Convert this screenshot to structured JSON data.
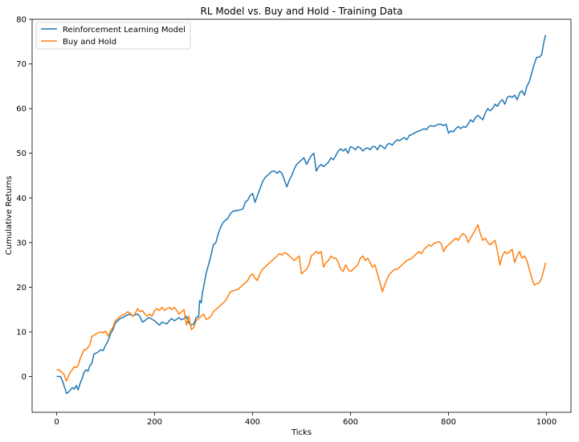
{
  "chart_data": {
    "type": "line",
    "title": "RL Model vs. Buy and Hold - Training Data",
    "xlabel": "Ticks",
    "ylabel": "Cumulative Returns",
    "xlim": [
      -50,
      1050
    ],
    "ylim": [
      -8,
      80
    ],
    "x_ticks": [
      0,
      200,
      400,
      600,
      800,
      1000
    ],
    "y_ticks": [
      0,
      10,
      20,
      30,
      40,
      50,
      60,
      70,
      80
    ],
    "x_tick_labels": [
      "0",
      "200",
      "400",
      "600",
      "800",
      "1000"
    ],
    "y_tick_labels": [
      "0",
      "10",
      "20",
      "30",
      "40",
      "50",
      "60",
      "70",
      "80"
    ],
    "grid": false,
    "legend_position": "upper-left",
    "series": [
      {
        "name": "Reinforcement Learning Model",
        "color": "#1f77b4",
        "x": [
          0,
          5,
          8,
          12,
          15,
          18,
          20,
          24,
          28,
          32,
          36,
          40,
          44,
          48,
          52,
          56,
          60,
          64,
          68,
          72,
          76,
          80,
          85,
          90,
          95,
          100,
          105,
          110,
          115,
          120,
          125,
          130,
          135,
          140,
          145,
          150,
          155,
          160,
          165,
          170,
          175,
          180,
          185,
          190,
          195,
          200,
          205,
          210,
          215,
          220,
          225,
          230,
          235,
          240,
          245,
          250,
          255,
          260,
          265,
          270,
          275,
          280,
          285,
          290,
          292,
          295,
          298,
          300,
          305,
          310,
          315,
          320,
          325,
          330,
          335,
          340,
          345,
          350,
          355,
          360,
          370,
          380,
          385,
          390,
          395,
          400,
          405,
          410,
          415,
          420,
          425,
          430,
          435,
          440,
          445,
          450,
          455,
          460,
          465,
          470,
          475,
          480,
          485,
          490,
          495,
          500,
          505,
          510,
          515,
          520,
          525,
          530,
          535,
          540,
          545,
          550,
          555,
          560,
          565,
          570,
          575,
          580,
          585,
          590,
          595,
          600,
          605,
          610,
          615,
          620,
          625,
          630,
          635,
          640,
          645,
          650,
          655,
          660,
          665,
          670,
          675,
          680,
          685,
          690,
          695,
          700,
          705,
          710,
          715,
          720,
          725,
          730,
          735,
          740,
          745,
          750,
          755,
          760,
          765,
          770,
          775,
          780,
          785,
          790,
          795,
          800,
          805,
          810,
          815,
          820,
          825,
          830,
          835,
          840,
          845,
          850,
          855,
          860,
          865,
          870,
          875,
          880,
          885,
          890,
          895,
          900,
          905,
          910,
          915,
          920,
          925,
          930,
          935,
          940,
          945,
          950,
          955,
          960,
          965,
          970,
          975,
          980,
          985,
          990,
          995,
          998
        ],
        "y": [
          0,
          0,
          0,
          -1,
          -2,
          -3,
          -3.8,
          -3.5,
          -3,
          -2.5,
          -2.8,
          -2,
          -3,
          -1.5,
          -0.5,
          1,
          1.5,
          1.2,
          2.5,
          3,
          5,
          5.2,
          5.5,
          6,
          5.8,
          7,
          8,
          9.5,
          10.5,
          12,
          12.5,
          13,
          13.2,
          13.5,
          13.8,
          14,
          13.5,
          13.8,
          14,
          13.5,
          12.2,
          12.5,
          13,
          13.2,
          12.8,
          12.5,
          12,
          11.5,
          12.2,
          12,
          11.8,
          12.5,
          13,
          12.5,
          12.8,
          13.2,
          12.7,
          13,
          13.5,
          12,
          11.5,
          11.8,
          13.2,
          13.5,
          17,
          16.5,
          19,
          20,
          23,
          25,
          27,
          29.5,
          30,
          32,
          33.5,
          34.5,
          35,
          35.5,
          36.5,
          37,
          37.2,
          37.5,
          39,
          39.5,
          40.5,
          41,
          39,
          40.5,
          42,
          43.5,
          44.5,
          45,
          45.5,
          46,
          46,
          45.5,
          46,
          45.5,
          44,
          42.5,
          44,
          45,
          46.5,
          47.5,
          48,
          48.5,
          49,
          47.5,
          48.5,
          49.5,
          50,
          46,
          47,
          47.5,
          47,
          47.5,
          48,
          49,
          48.5,
          49.5,
          50.5,
          51,
          50.5,
          51,
          50,
          51.5,
          51.2,
          50.8,
          51.5,
          51.2,
          50.5,
          51,
          51.2,
          50.8,
          51.5,
          51.5,
          50.8,
          51.8,
          51.5,
          51,
          52,
          52.2,
          51.8,
          52.5,
          53,
          52.8,
          53.2,
          53.5,
          53,
          54,
          54.2,
          54.5,
          54.8,
          55,
          55.2,
          55.5,
          55.3,
          56,
          56.2,
          56,
          56.3,
          56.5,
          56.5,
          56.2,
          56.5,
          54.5,
          55,
          54.8,
          55.5,
          56,
          55.5,
          56,
          55.8,
          56.5,
          57.5,
          57,
          58,
          58.5,
          58,
          57.5,
          59,
          60,
          59.5,
          60,
          61,
          60.5,
          61.5,
          62,
          61,
          62.5,
          62.8,
          62.5,
          63,
          62,
          63.5,
          64,
          63,
          65,
          66,
          68,
          70,
          71.5,
          71.5,
          72,
          75,
          76.5
        ]
      },
      {
        "name": "Buy and Hold",
        "color": "#ff7f0e",
        "x": [
          0,
          5,
          8,
          12,
          15,
          18,
          20,
          24,
          28,
          32,
          36,
          40,
          44,
          48,
          52,
          56,
          60,
          64,
          68,
          72,
          76,
          80,
          85,
          90,
          95,
          100,
          105,
          110,
          115,
          120,
          125,
          130,
          135,
          140,
          145,
          150,
          155,
          160,
          165,
          170,
          175,
          180,
          185,
          190,
          195,
          200,
          205,
          210,
          215,
          220,
          225,
          230,
          235,
          240,
          245,
          250,
          255,
          260,
          265,
          270,
          275,
          280,
          285,
          290,
          295,
          300,
          305,
          310,
          315,
          320,
          325,
          330,
          335,
          340,
          345,
          350,
          355,
          360,
          370,
          380,
          385,
          390,
          395,
          400,
          405,
          410,
          415,
          420,
          425,
          430,
          435,
          440,
          445,
          450,
          455,
          460,
          465,
          470,
          475,
          480,
          485,
          490,
          495,
          500,
          505,
          510,
          515,
          520,
          525,
          530,
          535,
          540,
          545,
          550,
          555,
          560,
          565,
          570,
          575,
          580,
          585,
          590,
          595,
          600,
          605,
          610,
          615,
          620,
          625,
          630,
          635,
          640,
          645,
          650,
          655,
          660,
          665,
          670,
          675,
          680,
          685,
          690,
          695,
          700,
          705,
          710,
          715,
          720,
          725,
          730,
          735,
          740,
          745,
          750,
          755,
          760,
          765,
          770,
          775,
          780,
          785,
          790,
          795,
          800,
          805,
          810,
          815,
          820,
          825,
          830,
          835,
          840,
          845,
          850,
          855,
          860,
          865,
          870,
          875,
          880,
          885,
          890,
          895,
          900,
          905,
          910,
          915,
          920,
          925,
          930,
          935,
          940,
          945,
          950,
          955,
          960,
          965,
          970,
          975,
          980,
          985,
          990,
          995,
          998
        ],
        "y": [
          1.5,
          1.5,
          1.2,
          0.8,
          0.5,
          -0.5,
          -1,
          0,
          1,
          1.5,
          2.2,
          2,
          2.5,
          4,
          5,
          6,
          6,
          6.5,
          7.2,
          9,
          9.2,
          9.5,
          9.8,
          10,
          9.8,
          10.2,
          9,
          10.2,
          11,
          12.5,
          13,
          13.5,
          13.8,
          14,
          14.5,
          14.2,
          13.5,
          14,
          15.2,
          14.5,
          14.8,
          14,
          13.5,
          14,
          13.5,
          14.8,
          15.2,
          14.8,
          15.5,
          14.8,
          15.2,
          15.5,
          15,
          15.5,
          14.8,
          14,
          14.5,
          15,
          11.5,
          13.5,
          10.5,
          11,
          12.5,
          13,
          13.5,
          14,
          12.8,
          13,
          13.5,
          14.5,
          15,
          15.5,
          16,
          16.5,
          17,
          18,
          19,
          19.2,
          19.5,
          20.5,
          21,
          21.5,
          22.5,
          23,
          22,
          21.5,
          23,
          24,
          24.5,
          25,
          25.5,
          26,
          26.5,
          27,
          27.5,
          27.2,
          27.8,
          27.5,
          27,
          26.5,
          26,
          26.5,
          27,
          23,
          23.5,
          24,
          25,
          27,
          27.5,
          28,
          27.5,
          28,
          24.5,
          25.5,
          26,
          27,
          26.5,
          26.5,
          25.5,
          24,
          23.5,
          25,
          24,
          23.5,
          24,
          24.5,
          25,
          26.5,
          27,
          26,
          26.5,
          25.5,
          24.5,
          25,
          23,
          21,
          19,
          20.5,
          22,
          23,
          23.5,
          24,
          24,
          24.5,
          25,
          25.5,
          26,
          26.2,
          26.5,
          27,
          27.5,
          28,
          27.5,
          28.5,
          29,
          29.5,
          29.2,
          29.8,
          30,
          30.2,
          29.8,
          28,
          29,
          29.5,
          30,
          30.5,
          31,
          30.5,
          31.5,
          32,
          31.5,
          30,
          31,
          32,
          33,
          34,
          32,
          30.5,
          31,
          30,
          29.5,
          30,
          30.5,
          28,
          25,
          27,
          28,
          27.5,
          28,
          28.5,
          25.5,
          27,
          28,
          26.5,
          27,
          26,
          24,
          22,
          20.5,
          20.8,
          21,
          22,
          24,
          25.5
        ]
      }
    ]
  }
}
